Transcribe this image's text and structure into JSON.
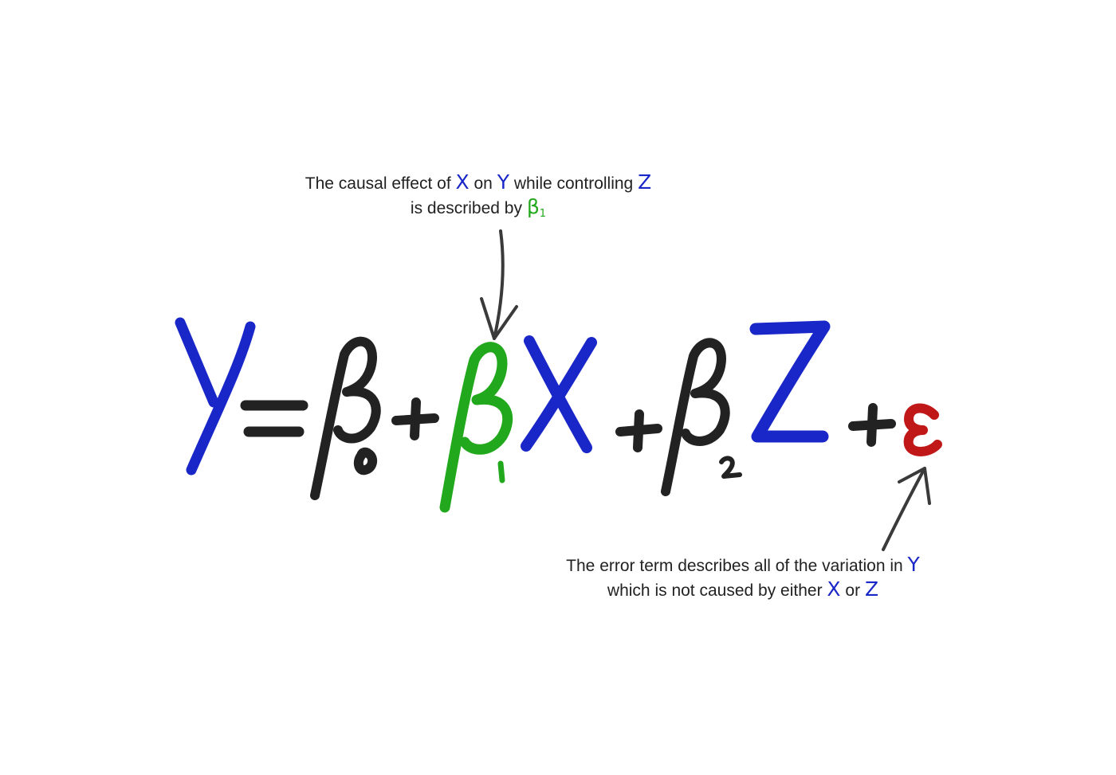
{
  "annotations": {
    "top": {
      "line1_prefix": "The causal effect of",
      "x_symbol": "X",
      "on": "on",
      "y_symbol": "Y",
      "while_controlling": "while controlling",
      "z_symbol": "Z",
      "line2_prefix": "is described by",
      "beta_symbol": "β",
      "beta_sub": "1"
    },
    "bottom": {
      "line1_prefix": "The error term describes all of the variation in",
      "y_symbol": "Y",
      "line2_prefix": "which is not caused by either",
      "x_symbol": "X",
      "or": "or",
      "z_symbol": "Z"
    }
  },
  "equation": {
    "lhs": "Y",
    "equals": "=",
    "terms": [
      {
        "symbol": "β",
        "subscript": "0",
        "variable": ""
      },
      {
        "symbol": "β",
        "subscript": "1",
        "variable": "X"
      },
      {
        "symbol": "β",
        "subscript": "2",
        "variable": "Z"
      },
      {
        "symbol": "ε",
        "subscript": "",
        "variable": ""
      }
    ],
    "operator": "+"
  },
  "colors": {
    "variable_blue": "#1a27c8",
    "beta_black": "#222222",
    "beta1_green": "#22a81c",
    "error_red": "#c01818",
    "arrow_gray": "#3a3a3a"
  }
}
